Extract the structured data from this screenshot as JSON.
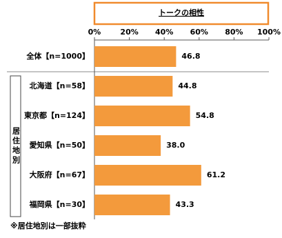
{
  "chart_data": {
    "type": "bar",
    "orientation": "horizontal",
    "title": "トークの相性",
    "categories": [
      "全体【n=1000】",
      "北海道【n=58】",
      "東京都【n=124】",
      "愛知県【n=50】",
      "大阪府【n=67】",
      "福岡県【n=30】"
    ],
    "values": [
      46.8,
      44.8,
      54.8,
      38.0,
      61.2,
      43.3
    ],
    "value_labels": [
      "46.8",
      "44.8",
      "54.8",
      "38.0",
      "61.2",
      "43.3"
    ],
    "color": "#f39a3c",
    "xlim": [
      0,
      100
    ],
    "xticks": [
      {
        "value": 0,
        "label": "0%"
      },
      {
        "value": 20,
        "label": "20%"
      },
      {
        "value": 40,
        "label": "40%"
      },
      {
        "value": 60,
        "label": "60%"
      },
      {
        "value": 80,
        "label": "80%"
      },
      {
        "value": 100,
        "label": "100%"
      }
    ],
    "group_label": "居住地別",
    "note": "※居住地別は一部抜粋"
  }
}
